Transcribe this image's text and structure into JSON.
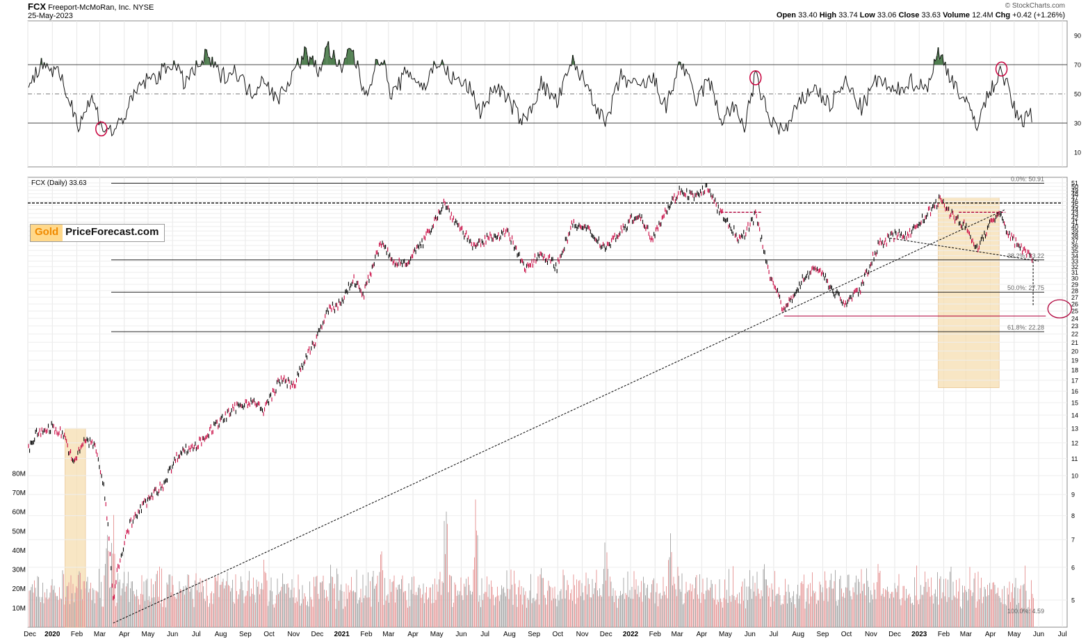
{
  "header": {
    "symbol": "FCX",
    "company": "Freeport-McMoRan, Inc.",
    "exchange": "NYSE",
    "date": "25-May-2023",
    "watermark": "© StockCharts.com",
    "open_label": "Open",
    "open": "33.40",
    "high_label": "High",
    "high": "33.74",
    "low_label": "Low",
    "low": "33.06",
    "close_label": "Close",
    "close": "33.63",
    "volume_label": "Volume",
    "volume": "12.4M",
    "chg_label": "Chg",
    "chg": "+0.42 (+1.26%)"
  },
  "logo": {
    "part1": "Gold",
    "part2": "PriceForecast.com"
  },
  "chart_data": [
    {
      "type": "line",
      "name": "rsi-panel",
      "ylim": [
        0,
        100
      ],
      "ticks": [
        "90",
        "70",
        "50",
        "30",
        "10"
      ],
      "tick_values": [
        90,
        70,
        50,
        30,
        10
      ],
      "reference_lines": [
        70,
        50,
        30
      ],
      "shaded_overbought_color": "#4a7a4a",
      "circle_annotations": [
        {
          "date": "2020-03-03",
          "value": 26
        },
        {
          "date": "2022-06-08",
          "value": 61
        },
        {
          "date": "2023-04-15",
          "value": 67
        }
      ],
      "series_points": [
        [
          "2019-12-02",
          55
        ],
        [
          "2019-12-20",
          72
        ],
        [
          "2020-01-10",
          62
        ],
        [
          "2020-01-24",
          44
        ],
        [
          "2020-02-03",
          30
        ],
        [
          "2020-02-20",
          47
        ],
        [
          "2020-03-05",
          27
        ],
        [
          "2020-03-18",
          24
        ],
        [
          "2020-04-01",
          35
        ],
        [
          "2020-04-22",
          57
        ],
        [
          "2020-05-15",
          63
        ],
        [
          "2020-06-01",
          72
        ],
        [
          "2020-06-15",
          58
        ],
        [
          "2020-07-01",
          67
        ],
        [
          "2020-07-14",
          76
        ],
        [
          "2020-08-01",
          62
        ],
        [
          "2020-08-20",
          66
        ],
        [
          "2020-09-08",
          50
        ],
        [
          "2020-09-25",
          62
        ],
        [
          "2020-10-10",
          45
        ],
        [
          "2020-10-30",
          63
        ],
        [
          "2020-11-15",
          78
        ],
        [
          "2020-12-02",
          66
        ],
        [
          "2020-12-15",
          82
        ],
        [
          "2021-01-01",
          64
        ],
        [
          "2021-01-12",
          84
        ],
        [
          "2021-01-30",
          50
        ],
        [
          "2021-02-20",
          77
        ],
        [
          "2021-03-05",
          48
        ],
        [
          "2021-03-25",
          66
        ],
        [
          "2021-04-15",
          54
        ],
        [
          "2021-05-01",
          73
        ],
        [
          "2021-05-20",
          61
        ],
        [
          "2021-06-10",
          55
        ],
        [
          "2021-06-25",
          38
        ],
        [
          "2021-07-15",
          56
        ],
        [
          "2021-08-01",
          44
        ],
        [
          "2021-08-20",
          30
        ],
        [
          "2021-09-10",
          57
        ],
        [
          "2021-09-30",
          44
        ],
        [
          "2021-10-20",
          72
        ],
        [
          "2021-11-10",
          53
        ],
        [
          "2021-11-30",
          28
        ],
        [
          "2021-12-20",
          62
        ],
        [
          "2022-01-10",
          54
        ],
        [
          "2022-01-30",
          60
        ],
        [
          "2022-02-15",
          40
        ],
        [
          "2022-03-05",
          73
        ],
        [
          "2022-03-25",
          45
        ],
        [
          "2022-04-10",
          60
        ],
        [
          "2022-04-25",
          32
        ],
        [
          "2022-05-10",
          41
        ],
        [
          "2022-05-25",
          28
        ],
        [
          "2022-06-08",
          62
        ],
        [
          "2022-06-25",
          33
        ],
        [
          "2022-07-15",
          24
        ],
        [
          "2022-08-01",
          42
        ],
        [
          "2022-08-20",
          55
        ],
        [
          "2022-09-10",
          42
        ],
        [
          "2022-09-30",
          58
        ],
        [
          "2022-10-20",
          40
        ],
        [
          "2022-11-10",
          61
        ],
        [
          "2022-11-30",
          50
        ],
        [
          "2022-12-20",
          59
        ],
        [
          "2023-01-10",
          54
        ],
        [
          "2023-01-25",
          78
        ],
        [
          "2023-02-10",
          62
        ],
        [
          "2023-02-28",
          44
        ],
        [
          "2023-03-15",
          30
        ],
        [
          "2023-03-31",
          51
        ],
        [
          "2023-04-15",
          67
        ],
        [
          "2023-05-01",
          40
        ],
        [
          "2023-05-10",
          30
        ],
        [
          "2023-05-20",
          40
        ],
        [
          "2023-05-25",
          32
        ]
      ]
    },
    {
      "type": "line",
      "name": "price-panel",
      "title": "FCX (Daily) 33.63",
      "y_scale": "log",
      "ylim": [
        4.3,
        51
      ],
      "ticks": [
        "51",
        "50",
        "49",
        "48",
        "47",
        "46",
        "45",
        "44",
        "43",
        "42",
        "41",
        "40",
        "39",
        "38",
        "37",
        "36",
        "35",
        "34",
        "33",
        "32",
        "31",
        "30",
        "29",
        "28",
        "27",
        "26",
        "25",
        "24",
        "23",
        "22",
        "21",
        "20",
        "19",
        "18",
        "17",
        "16",
        "15",
        "14",
        "13",
        "12",
        "11",
        "10",
        "9",
        "8",
        "7",
        "6",
        "5"
      ],
      "fib_levels": [
        {
          "label": "0.0%: 50.91",
          "value": 50.91
        },
        {
          "label": "38.2%: 33.22",
          "value": 33.22
        },
        {
          "label": "50.0%: 27.75",
          "value": 27.75
        },
        {
          "label": "61.8%: 22.28",
          "value": 22.28
        },
        {
          "label": "100.0%: 4.59",
          "value": 4.59
        }
      ],
      "x_labels": [
        "Dec",
        "2020",
        "Feb",
        "Mar",
        "Apr",
        "May",
        "Jun",
        "Jul",
        "Aug",
        "Sep",
        "Oct",
        "Nov",
        "Dec",
        "2021",
        "Feb",
        "Mar",
        "Apr",
        "May",
        "Jun",
        "Jul",
        "Aug",
        "Sep",
        "Oct",
        "Nov",
        "Dec",
        "2022",
        "Feb",
        "Mar",
        "Apr",
        "May",
        "Jun",
        "Jul",
        "Aug",
        "Sep",
        "Oct",
        "Nov",
        "Dec",
        "2023",
        "Feb",
        "Mar",
        "Apr",
        "May",
        "Jun",
        "Jul"
      ],
      "x_label_dates": [
        "2019-12-01",
        "2020-01-01",
        "2020-02-01",
        "2020-03-01",
        "2020-04-01",
        "2020-05-01",
        "2020-06-01",
        "2020-07-01",
        "2020-08-01",
        "2020-09-01",
        "2020-10-01",
        "2020-11-01",
        "2020-12-01",
        "2021-01-01",
        "2021-02-01",
        "2021-03-01",
        "2021-04-01",
        "2021-05-01",
        "2021-06-01",
        "2021-07-01",
        "2021-08-01",
        "2021-09-01",
        "2021-10-01",
        "2021-11-01",
        "2021-12-01",
        "2022-01-01",
        "2022-02-01",
        "2022-03-01",
        "2022-04-01",
        "2022-05-01",
        "2022-06-01",
        "2022-07-01",
        "2022-08-01",
        "2022-09-01",
        "2022-10-01",
        "2022-11-01",
        "2022-12-01",
        "2023-01-01",
        "2023-02-01",
        "2023-03-01",
        "2023-04-01",
        "2023-05-01",
        "2023-06-01",
        "2023-07-01"
      ],
      "bold_x_labels": [
        "2020",
        "2021",
        "2022",
        "2023"
      ],
      "price_points": [
        [
          "2019-12-02",
          11.6
        ],
        [
          "2019-12-12",
          12.6
        ],
        [
          "2019-12-31",
          13.1
        ],
        [
          "2020-01-15",
          12.6
        ],
        [
          "2020-01-28",
          10.6
        ],
        [
          "2020-02-10",
          12.2
        ],
        [
          "2020-02-24",
          11.8
        ],
        [
          "2020-03-06",
          9.4
        ],
        [
          "2020-03-18",
          5.0
        ],
        [
          "2020-03-24",
          6.0
        ],
        [
          "2020-04-08",
          7.6
        ],
        [
          "2020-04-28",
          8.6
        ],
        [
          "2020-05-20",
          9.5
        ],
        [
          "2020-06-10",
          11.4
        ],
        [
          "2020-07-01",
          11.8
        ],
        [
          "2020-07-22",
          13.0
        ],
        [
          "2020-08-20",
          14.6
        ],
        [
          "2020-09-08",
          15.2
        ],
        [
          "2020-09-24",
          14.3
        ],
        [
          "2020-10-15",
          17.0
        ],
        [
          "2020-11-02",
          16.6
        ],
        [
          "2020-11-30",
          21.5
        ],
        [
          "2020-12-15",
          25.0
        ],
        [
          "2020-12-31",
          26.2
        ],
        [
          "2021-01-15",
          29.8
        ],
        [
          "2021-01-29",
          27.5
        ],
        [
          "2021-02-20",
          36.5
        ],
        [
          "2021-03-08",
          32.5
        ],
        [
          "2021-03-25",
          33.0
        ],
        [
          "2021-04-15",
          36.8
        ],
        [
          "2021-05-10",
          45.5
        ],
        [
          "2021-05-25",
          41.0
        ],
        [
          "2021-06-18",
          35.5
        ],
        [
          "2021-07-10",
          38.0
        ],
        [
          "2021-07-30",
          38.5
        ],
        [
          "2021-08-20",
          31.5
        ],
        [
          "2021-09-10",
          34.5
        ],
        [
          "2021-09-30",
          32.0
        ],
        [
          "2021-10-20",
          40.5
        ],
        [
          "2021-11-10",
          39.0
        ],
        [
          "2021-11-30",
          35.5
        ],
        [
          "2021-12-20",
          39.0
        ],
        [
          "2022-01-10",
          43.0
        ],
        [
          "2022-01-28",
          37.5
        ],
        [
          "2022-02-15",
          43.8
        ],
        [
          "2022-03-05",
          49.0
        ],
        [
          "2022-03-25",
          47.0
        ],
        [
          "2022-04-06",
          49.9
        ],
        [
          "2022-04-22",
          44.0
        ],
        [
          "2022-05-05",
          40.5
        ],
        [
          "2022-05-20",
          37.0
        ],
        [
          "2022-06-08",
          42.5
        ],
        [
          "2022-06-25",
          31.0
        ],
        [
          "2022-07-14",
          24.8
        ],
        [
          "2022-08-05",
          29.5
        ],
        [
          "2022-08-25",
          32.0
        ],
        [
          "2022-09-15",
          27.8
        ],
        [
          "2022-09-30",
          26.0
        ],
        [
          "2022-10-20",
          28.5
        ],
        [
          "2022-11-10",
          36.0
        ],
        [
          "2022-11-30",
          38.0
        ],
        [
          "2022-12-20",
          38.5
        ],
        [
          "2023-01-10",
          42.5
        ],
        [
          "2023-01-26",
          46.3
        ],
        [
          "2023-02-10",
          43.0
        ],
        [
          "2023-02-28",
          40.0
        ],
        [
          "2023-03-15",
          35.2
        ],
        [
          "2023-03-31",
          40.5
        ],
        [
          "2023-04-12",
          43.0
        ],
        [
          "2023-04-25",
          38.0
        ],
        [
          "2023-05-10",
          35.5
        ],
        [
          "2023-05-25",
          33.6
        ]
      ],
      "shaded_periods": [
        {
          "start": "2020-01-17",
          "end": "2020-02-12",
          "low": 4.3,
          "high": 13.0,
          "color": "#f5deb0"
        },
        {
          "start": "2023-01-25",
          "end": "2023-04-12",
          "low": 16.3,
          "high": 47.0,
          "color": "#f5deb0"
        }
      ],
      "trend_lines": [
        {
          "from": [
            "2020-03-18",
            4.4
          ],
          "to": [
            "2023-04-20",
            44.0
          ],
          "style": "dashed",
          "color": "#000000"
        },
        {
          "from": [
            "2022-11-25",
            37.5
          ],
          "to": [
            "2023-06-01",
            33.0
          ],
          "style": "dashed",
          "color": "#000000"
        }
      ],
      "horizontal_markers": [
        {
          "value": 45.6,
          "from": "2019-12-01",
          "to": "2023-07-01",
          "style": "dashed",
          "color": "#000000"
        },
        {
          "value": 43.3,
          "from": "2022-04-25",
          "to": "2022-06-15",
          "style": "dashed",
          "color": "#b0003a"
        },
        {
          "value": 43.3,
          "from": "2023-02-20",
          "to": "2023-04-20",
          "style": "dashed",
          "color": "#b0003a"
        },
        {
          "value": 24.3,
          "from": "2022-07-14",
          "to": "2023-06-10",
          "style": "solid",
          "color": "#b0003a"
        }
      ],
      "target_circle": {
        "date": "2023-06-10",
        "value": 25.3,
        "color": "#b0003a"
      }
    },
    {
      "type": "bar",
      "name": "volume-panel",
      "ylim": [
        0,
        85
      ],
      "ticks": [
        "80M",
        "70M",
        "60M",
        "50M",
        "40M",
        "30M",
        "20M",
        "10M"
      ],
      "tick_values": [
        80,
        70,
        60,
        50,
        40,
        30,
        20,
        10
      ],
      "up_color": "#a9a9a9",
      "down_color": "#e79a9a",
      "sample_points": [
        [
          "2020-03-10",
          53
        ],
        [
          "2020-03-18",
          70
        ],
        [
          "2020-06-01",
          30
        ],
        [
          "2020-09-25",
          35
        ],
        [
          "2020-12-20",
          36
        ],
        [
          "2021-02-20",
          40
        ],
        [
          "2021-05-12",
          55
        ],
        [
          "2021-06-20",
          63
        ],
        [
          "2021-11-30",
          42
        ],
        [
          "2022-02-20",
          45
        ],
        [
          "2022-06-20",
          42
        ],
        [
          "2022-11-10",
          33
        ],
        [
          "2023-03-10",
          30
        ],
        [
          "2023-05-20",
          18
        ]
      ]
    }
  ]
}
